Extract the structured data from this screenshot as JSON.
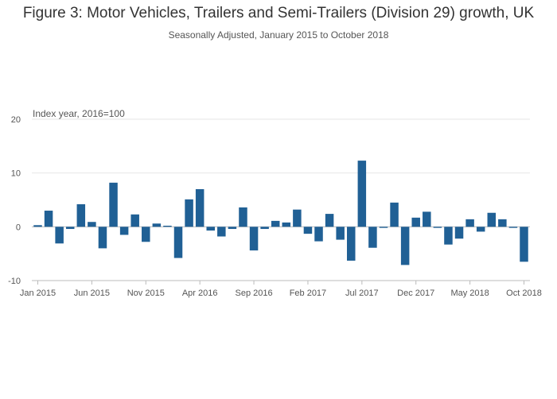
{
  "chart_data": {
    "type": "bar",
    "title": "Figure 3: Motor Vehicles, Trailers and Semi-Trailers (Division 29) growth, UK",
    "subtitle": "Seasonally Adjusted, January 2015 to October 2018",
    "ylabel": "Index year, 2016=100",
    "xlabel": "",
    "ylim": [
      -10,
      20
    ],
    "yticks": [
      -10,
      0,
      10,
      20
    ],
    "bar_color": "#206095",
    "grid_color": "#e6e6e6",
    "categories": [
      "Jan 2015",
      "Feb 2015",
      "Mar 2015",
      "Apr 2015",
      "May 2015",
      "Jun 2015",
      "Jul 2015",
      "Aug 2015",
      "Sep 2015",
      "Oct 2015",
      "Nov 2015",
      "Dec 2015",
      "Jan 2016",
      "Feb 2016",
      "Mar 2016",
      "Apr 2016",
      "May 2016",
      "Jun 2016",
      "Jul 2016",
      "Aug 2016",
      "Sep 2016",
      "Oct 2016",
      "Nov 2016",
      "Dec 2016",
      "Jan 2017",
      "Feb 2017",
      "Mar 2017",
      "Apr 2017",
      "May 2017",
      "Jun 2017",
      "Jul 2017",
      "Aug 2017",
      "Sep 2017",
      "Oct 2017",
      "Nov 2017",
      "Dec 2017",
      "Jan 2018",
      "Feb 2018",
      "Mar 2018",
      "Apr 2018",
      "May 2018",
      "Jun 2018",
      "Jul 2018",
      "Aug 2018",
      "Sep 2018",
      "Oct 2018"
    ],
    "values": [
      0.3,
      3.0,
      -3.1,
      -0.4,
      4.2,
      0.9,
      -4.0,
      8.2,
      -1.5,
      2.3,
      -2.8,
      0.6,
      0.2,
      -5.8,
      5.1,
      7.0,
      -0.7,
      -1.8,
      -0.4,
      3.6,
      -4.4,
      -0.4,
      1.1,
      0.8,
      3.2,
      -1.3,
      -2.7,
      2.4,
      -2.4,
      -6.3,
      12.3,
      -3.9,
      -0.2,
      4.5,
      -7.1,
      1.7,
      2.8,
      -0.2,
      -3.3,
      -2.2,
      1.4,
      -0.9,
      2.6,
      1.4,
      -0.2,
      -6.5
    ],
    "xtick_labels": [
      "Jan 2015",
      "Jun 2015",
      "Nov 2015",
      "Apr 2016",
      "Sep 2016",
      "Feb 2017",
      "Jul 2017",
      "Dec 2017",
      "May 2018",
      "Oct 2018"
    ],
    "xtick_indices": [
      0,
      5,
      10,
      15,
      20,
      25,
      30,
      35,
      40,
      45
    ]
  }
}
